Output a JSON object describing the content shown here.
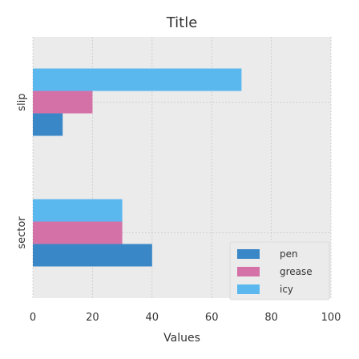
{
  "chart_data": {
    "type": "bar",
    "orientation": "horizontal",
    "title": "Title",
    "xlabel": "Values",
    "ylabel": "",
    "categories": [
      "sector",
      "slip"
    ],
    "series": [
      {
        "name": "pen",
        "color": "#3a87c7",
        "values": [
          40,
          10
        ]
      },
      {
        "name": "grease",
        "color": "#d472a8",
        "values": [
          30,
          20
        ]
      },
      {
        "name": "icy",
        "color": "#5bb8ef",
        "values": [
          30,
          70
        ]
      }
    ],
    "xlim": [
      0,
      100
    ],
    "xticks": [
      0,
      20,
      40,
      60,
      80,
      100
    ],
    "grid": true,
    "legend_position": "bottom-right",
    "background": "#ebebeb"
  }
}
